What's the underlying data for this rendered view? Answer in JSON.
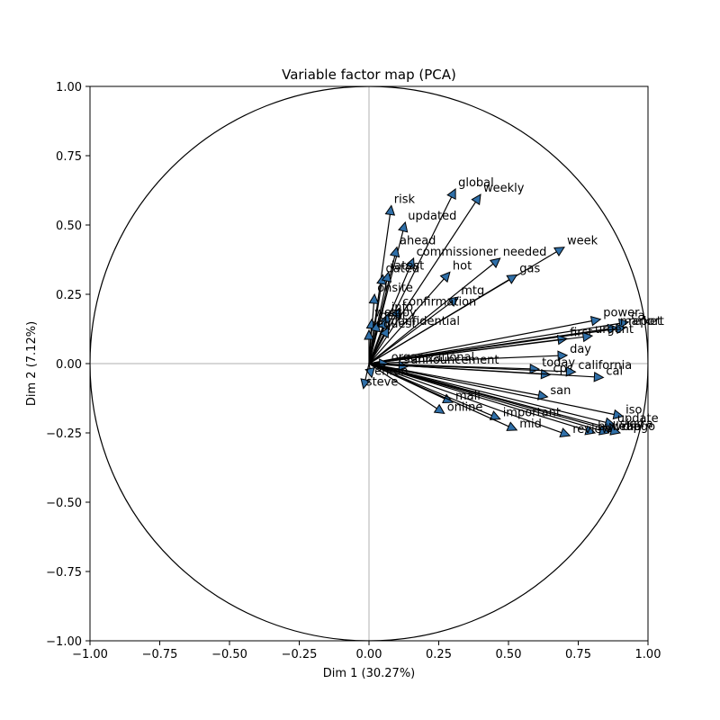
{
  "chart_data": {
    "type": "scatter",
    "subtype": "pca-variable-factor-map",
    "title": "Variable factor map (PCA)",
    "xlabel": "Dim 1 (30.27%)",
    "ylabel": "Dim 2 (7.12%)",
    "xlim": [
      -1.0,
      1.0
    ],
    "ylim": [
      -1.0,
      1.0
    ],
    "x_ticks": [
      "−1.00",
      "−0.75",
      "−0.50",
      "−0.25",
      "0.00",
      "0.25",
      "0.50",
      "0.75",
      "1.00"
    ],
    "y_ticks": [
      "−1.00",
      "−0.75",
      "−0.50",
      "−0.25",
      "0.00",
      "0.25",
      "0.50",
      "0.75",
      "1.00"
    ],
    "unit_circle": true,
    "reference_lines": true,
    "arrow_color": "#2f6fa8",
    "variables": [
      {
        "name": "risk",
        "x": 0.08,
        "y": 0.57
      },
      {
        "name": "global",
        "x": 0.31,
        "y": 0.63
      },
      {
        "name": "weekly",
        "x": 0.4,
        "y": 0.61
      },
      {
        "name": "updated",
        "x": 0.13,
        "y": 0.51
      },
      {
        "name": "ahead",
        "x": 0.1,
        "y": 0.42
      },
      {
        "name": "commissioner",
        "x": 0.16,
        "y": 0.38
      },
      {
        "name": "needed",
        "x": 0.47,
        "y": 0.38
      },
      {
        "name": "week",
        "x": 0.7,
        "y": 0.42
      },
      {
        "name": "dated",
        "x": 0.05,
        "y": 0.32
      },
      {
        "name": "latest",
        "x": 0.07,
        "y": 0.33
      },
      {
        "name": "hot",
        "x": 0.29,
        "y": 0.33
      },
      {
        "name": "gas",
        "x": 0.53,
        "y": 0.32
      },
      {
        "name": "onsite",
        "x": 0.02,
        "y": 0.25
      },
      {
        "name": "mtg",
        "x": 0.32,
        "y": 0.24
      },
      {
        "name": "confirmation",
        "x": 0.11,
        "y": 0.2
      },
      {
        "name": "info",
        "x": 0.07,
        "y": 0.18
      },
      {
        "name": "copy",
        "x": 0.06,
        "y": 0.16
      },
      {
        "name": "west",
        "x": 0.01,
        "y": 0.16
      },
      {
        "name": "dept",
        "x": 0.03,
        "y": 0.15
      },
      {
        "name": "confidential",
        "x": 0.07,
        "y": 0.13
      },
      {
        "name": "request",
        "x": 0.0,
        "y": 0.12
      },
      {
        "name": "power",
        "x": 0.83,
        "y": 0.16
      },
      {
        "name": "ca",
        "x": 0.93,
        "y": 0.15
      },
      {
        "name": "market",
        "x": 0.89,
        "y": 0.13
      },
      {
        "name": "report",
        "x": 0.92,
        "y": 0.13
      },
      {
        "name": "first",
        "x": 0.71,
        "y": 0.09
      },
      {
        "name": "urgent",
        "x": 0.8,
        "y": 0.1
      },
      {
        "name": "day",
        "x": 0.71,
        "y": 0.03
      },
      {
        "name": "organizational",
        "x": 0.07,
        "y": 0.0
      },
      {
        "name": "announcement",
        "x": 0.14,
        "y": -0.01
      },
      {
        "name": "today",
        "x": 0.61,
        "y": -0.02
      },
      {
        "name": "cps",
        "x": 0.65,
        "y": -0.04
      },
      {
        "name": "california",
        "x": 0.74,
        "y": -0.03
      },
      {
        "name": "cal",
        "x": 0.84,
        "y": -0.05
      },
      {
        "name": "enron",
        "x": 0.01,
        "y": -0.05
      },
      {
        "name": "steve",
        "x": -0.02,
        "y": -0.09
      },
      {
        "name": "san",
        "x": 0.64,
        "y": -0.12
      },
      {
        "name": "mail",
        "x": 0.3,
        "y": -0.14
      },
      {
        "name": "online",
        "x": 0.27,
        "y": -0.18
      },
      {
        "name": "important",
        "x": 0.47,
        "y": -0.2
      },
      {
        "name": "mid",
        "x": 0.53,
        "y": -0.24
      },
      {
        "name": "iso",
        "x": 0.91,
        "y": -0.19
      },
      {
        "name": "update",
        "x": 0.88,
        "y": -0.22
      },
      {
        "name": "sierra",
        "x": 0.89,
        "y": -0.24
      },
      {
        "name": "diego",
        "x": 0.9,
        "y": -0.25
      },
      {
        "name": "wrap",
        "x": 0.86,
        "y": -0.25
      },
      {
        "name": "bulletin",
        "x": 0.81,
        "y": -0.25
      },
      {
        "name": "review",
        "x": 0.72,
        "y": -0.26
      }
    ]
  }
}
